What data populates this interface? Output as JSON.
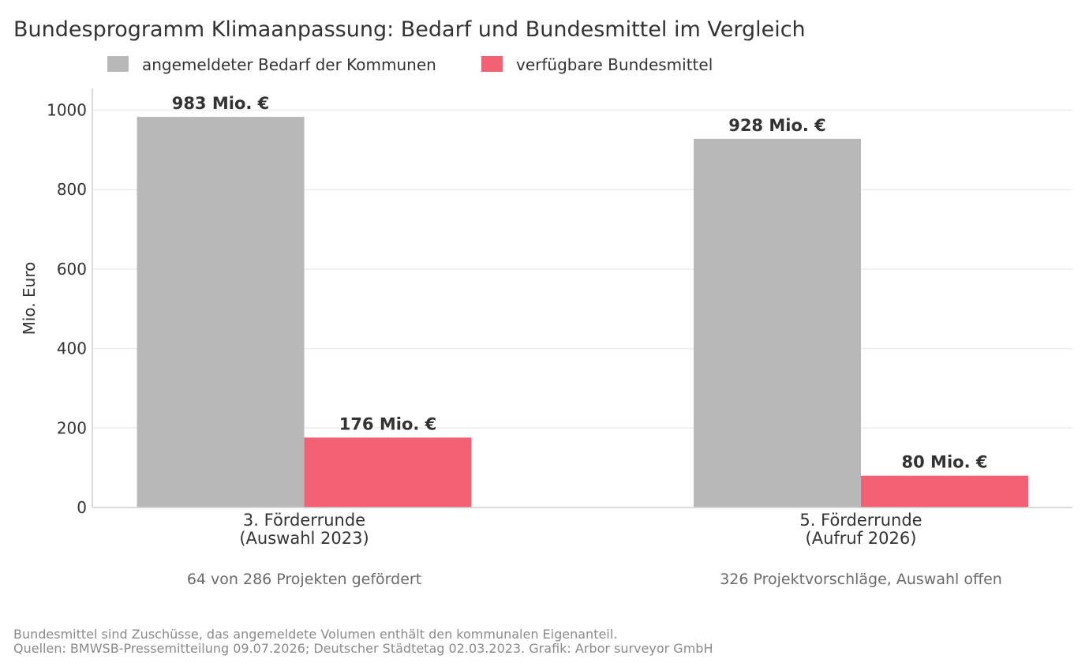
{
  "chart_data": {
    "type": "bar",
    "title": "Bundesprogramm Klimaanpassung: Bedarf und Bundesmittel im Vergleich",
    "ylabel": "Mio. Euro",
    "xlabel": "",
    "ylim": [
      0,
      1050
    ],
    "yticks": [
      0,
      200,
      400,
      600,
      800,
      1000
    ],
    "grid": true,
    "legend_position": "top-left",
    "categories": [
      {
        "line1": "3. Förderrunde",
        "line2": "(Auswahl 2023)",
        "note": "64 von 286 Projekten gefördert"
      },
      {
        "line1": "5. Förderrunde",
        "line2": "(Aufruf 2026)",
        "note": "326 Projektvorschläge, Auswahl offen"
      }
    ],
    "series": [
      {
        "name": "angemeldeter Bedarf der Kommunen",
        "color": "#b8b8b8",
        "values": [
          983,
          928
        ],
        "labels": [
          "983 Mio. €",
          "928 Mio. €"
        ]
      },
      {
        "name": "verfügbare Bundesmittel",
        "color": "#f26174",
        "values": [
          176,
          80
        ],
        "labels": [
          "176 Mio. €",
          "80 Mio. €"
        ]
      }
    ]
  },
  "footer": {
    "line1": "Bundesmittel sind Zuschüsse, das angemeldete Volumen enthält den kommunalen Eigenanteil.",
    "line2": "Quellen: BMWSB-Pressemitteilung 09.07.2026; Deutscher Städtetag 02.03.2023. Grafik: Arbor surveyor GmbH"
  }
}
